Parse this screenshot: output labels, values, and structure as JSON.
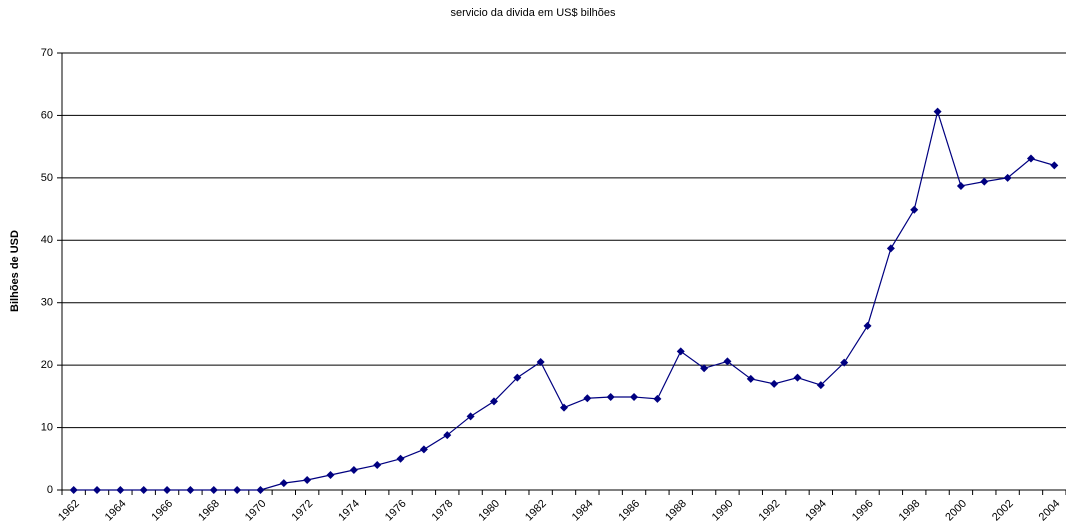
{
  "chart_data": {
    "type": "line",
    "title": "servicio da divida em US$ bilhões",
    "y_label": "Bilhões de USD",
    "categories": [
      "1962",
      null,
      "1964",
      null,
      "1966",
      null,
      "1968",
      null,
      "1970",
      null,
      "1972",
      null,
      "1974",
      null,
      "1976",
      null,
      "1978",
      null,
      "1980",
      null,
      "1982",
      null,
      "1984",
      null,
      "1986",
      null,
      "1988",
      null,
      "1990",
      null,
      "1992",
      null,
      "1994",
      null,
      "1996",
      null,
      "1998",
      null,
      "2000",
      null,
      "2002",
      null,
      "2004"
    ],
    "series": [
      {
        "name": "servicio da divida",
        "color": "#000080",
        "values": [
          0,
          0,
          0,
          0,
          0,
          0,
          0,
          0,
          0,
          1.1,
          1.6,
          2.4,
          3.2,
          4.0,
          5.0,
          6.5,
          8.8,
          11.8,
          14.2,
          18.0,
          20.5,
          13.2,
          14.7,
          14.9,
          14.9,
          14.6,
          22.2,
          19.5,
          20.6,
          17.8,
          17.0,
          18.0,
          16.8,
          20.4,
          26.3,
          38.7,
          44.9,
          60.6,
          48.7,
          49.4,
          50.0,
          53.1,
          52.0
        ]
      }
    ],
    "ylim": [
      0,
      70
    ],
    "yticks": [
      0,
      10,
      20,
      30,
      40,
      50,
      60,
      70
    ],
    "grid": true
  }
}
